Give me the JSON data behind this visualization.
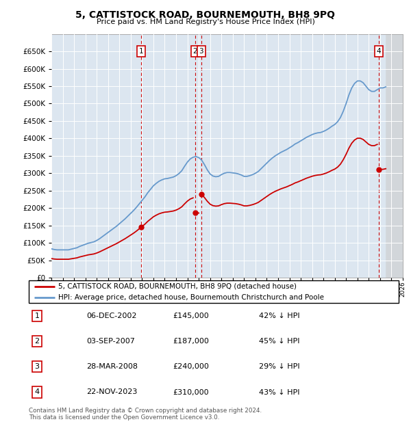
{
  "title": "5, CATTISTOCK ROAD, BOURNEMOUTH, BH8 9PQ",
  "subtitle": "Price paid vs. HM Land Registry's House Price Index (HPI)",
  "background_color": "#ffffff",
  "plot_bg_color": "#dce6f0",
  "grid_color": "#ffffff",
  "ylim": [
    0,
    700000
  ],
  "yticks": [
    0,
    50000,
    100000,
    150000,
    200000,
    250000,
    300000,
    350000,
    400000,
    450000,
    500000,
    550000,
    600000,
    650000
  ],
  "sale_dates": [
    2002.92,
    2007.67,
    2008.23,
    2023.89
  ],
  "sale_prices": [
    145000,
    187000,
    240000,
    310000
  ],
  "sale_labels": [
    "1",
    "2",
    "3",
    "4"
  ],
  "hpi_years": [
    1995.0,
    1995.25,
    1995.5,
    1995.75,
    1996.0,
    1996.25,
    1996.5,
    1996.75,
    1997.0,
    1997.25,
    1997.5,
    1997.75,
    1998.0,
    1998.25,
    1998.5,
    1998.75,
    1999.0,
    1999.25,
    1999.5,
    1999.75,
    2000.0,
    2000.25,
    2000.5,
    2000.75,
    2001.0,
    2001.25,
    2001.5,
    2001.75,
    2002.0,
    2002.25,
    2002.5,
    2002.75,
    2003.0,
    2003.25,
    2003.5,
    2003.75,
    2004.0,
    2004.25,
    2004.5,
    2004.75,
    2005.0,
    2005.25,
    2005.5,
    2005.75,
    2006.0,
    2006.25,
    2006.5,
    2006.75,
    2007.0,
    2007.25,
    2007.5,
    2007.75,
    2008.0,
    2008.25,
    2008.5,
    2008.75,
    2009.0,
    2009.25,
    2009.5,
    2009.75,
    2010.0,
    2010.25,
    2010.5,
    2010.75,
    2011.0,
    2011.25,
    2011.5,
    2011.75,
    2012.0,
    2012.25,
    2012.5,
    2012.75,
    2013.0,
    2013.25,
    2013.5,
    2013.75,
    2014.0,
    2014.25,
    2014.5,
    2014.75,
    2015.0,
    2015.25,
    2015.5,
    2015.75,
    2016.0,
    2016.25,
    2016.5,
    2016.75,
    2017.0,
    2017.25,
    2017.5,
    2017.75,
    2018.0,
    2018.25,
    2018.5,
    2018.75,
    2019.0,
    2019.25,
    2019.5,
    2019.75,
    2020.0,
    2020.25,
    2020.5,
    2020.75,
    2021.0,
    2021.25,
    2021.5,
    2021.75,
    2022.0,
    2022.25,
    2022.5,
    2022.75,
    2023.0,
    2023.25,
    2023.5,
    2023.75,
    2024.0,
    2024.25,
    2024.5
  ],
  "hpi_values": [
    83000,
    81000,
    80000,
    80000,
    80000,
    80000,
    80000,
    82000,
    84000,
    86000,
    90000,
    93000,
    96000,
    99000,
    101000,
    103000,
    107000,
    112000,
    118000,
    124000,
    130000,
    136000,
    142000,
    148000,
    155000,
    162000,
    169000,
    177000,
    185000,
    193000,
    202000,
    212000,
    222000,
    232000,
    244000,
    254000,
    264000,
    271000,
    277000,
    281000,
    284000,
    285000,
    287000,
    289000,
    293000,
    299000,
    307000,
    320000,
    332000,
    341000,
    346000,
    348000,
    345000,
    338000,
    325000,
    310000,
    298000,
    292000,
    290000,
    291000,
    296000,
    300000,
    302000,
    302000,
    301000,
    300000,
    298000,
    295000,
    291000,
    291000,
    293000,
    296000,
    300000,
    305000,
    313000,
    321000,
    329000,
    337000,
    344000,
    350000,
    355000,
    360000,
    364000,
    368000,
    373000,
    378000,
    384000,
    388000,
    393000,
    398000,
    403000,
    407000,
    411000,
    414000,
    416000,
    417000,
    420000,
    424000,
    429000,
    435000,
    440000,
    448000,
    460000,
    478000,
    500000,
    525000,
    545000,
    558000,
    565000,
    565000,
    560000,
    550000,
    540000,
    535000,
    535000,
    540000,
    545000,
    545000,
    548000
  ],
  "red_line_color": "#cc0000",
  "blue_line_color": "#6699cc",
  "annotation_border_color": "#cc0000",
  "hatch_color": "#bbbbbb",
  "footer_text": "Contains HM Land Registry data © Crown copyright and database right 2024.\nThis data is licensed under the Open Government Licence v3.0.",
  "legend_line1": "5, CATTISTOCK ROAD, BOURNEMOUTH, BH8 9PQ (detached house)",
  "legend_line2": "HPI: Average price, detached house, Bournemouth Christchurch and Poole",
  "table_data": [
    [
      "1",
      "06-DEC-2002",
      "£145,000",
      "42% ↓ HPI"
    ],
    [
      "2",
      "03-SEP-2007",
      "£187,000",
      "45% ↓ HPI"
    ],
    [
      "3",
      "28-MAR-2008",
      "£240,000",
      "29% ↓ HPI"
    ],
    [
      "4",
      "22-NOV-2023",
      "£310,000",
      "43% ↓ HPI"
    ]
  ],
  "xlim_start": 1995.0,
  "xlim_end": 2026.0,
  "hatch_start": 2024.5
}
